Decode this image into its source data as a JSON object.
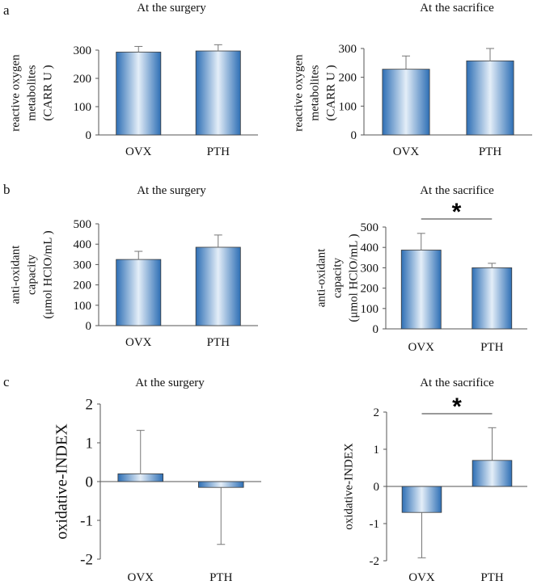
{
  "panels": [
    {
      "letter": "a"
    },
    {
      "letter": "b"
    },
    {
      "letter": "c"
    }
  ],
  "chart_data": [
    {
      "type": "bar",
      "title": "At the surgery",
      "categories": [
        "OVX",
        "PTH"
      ],
      "values": [
        293,
        297
      ],
      "errors": [
        20,
        22
      ],
      "ylabel": [
        "reactive oxygen",
        "metabolites",
        "(CARR U )"
      ],
      "ylim": [
        0,
        300
      ],
      "yticks": [
        "0",
        "100",
        "200",
        "300"
      ],
      "significance": ""
    },
    {
      "type": "bar",
      "title": "At the sacrifice",
      "categories": [
        "OVX",
        "PTH"
      ],
      "values": [
        228,
        257
      ],
      "errors": [
        46,
        43
      ],
      "ylabel": [
        "reactive oxygen",
        "metabolites",
        "(CARR U )"
      ],
      "ylim": [
        0,
        300
      ],
      "yticks": [
        "0",
        "100",
        "200",
        "300"
      ],
      "significance": ""
    },
    {
      "type": "bar",
      "title": "At the surgery",
      "categories": [
        "OVX",
        "PTH"
      ],
      "values": [
        325,
        385
      ],
      "errors": [
        40,
        60
      ],
      "ylabel": [
        "anti-oxidant",
        "capacity",
        "(μmol HClO/mL )"
      ],
      "ylim": [
        0,
        500
      ],
      "yticks": [
        "0",
        "100",
        "200",
        "300",
        "400",
        "500"
      ],
      "significance": ""
    },
    {
      "type": "bar",
      "title": "At the sacrifice",
      "categories": [
        "OVX",
        "PTH"
      ],
      "values": [
        387,
        300
      ],
      "errors": [
        82,
        22
      ],
      "ylabel": [
        "anti-oxidant",
        "capacity",
        "(μmol HClO/mL )"
      ],
      "ylim": [
        0,
        500
      ],
      "yticks": [
        "0",
        "100",
        "200",
        "300",
        "400",
        "500"
      ],
      "significance": "*"
    },
    {
      "type": "bar",
      "title": "At the surgery",
      "categories": [
        "OVX",
        "PTH"
      ],
      "values": [
        0.2,
        -0.15
      ],
      "errors": [
        1.12,
        1.47
      ],
      "ylabel": [
        "oxidative-INDEX"
      ],
      "ylim": [
        -2,
        2
      ],
      "yticks": [
        "-2",
        "-1",
        "0",
        "1",
        "2"
      ],
      "significance": ""
    },
    {
      "type": "bar",
      "title": "At the sacrifice",
      "categories": [
        "OVX",
        "PTH"
      ],
      "values": [
        -0.7,
        0.7
      ],
      "errors": [
        1.22,
        0.88
      ],
      "ylabel": [
        "oxidative-INDEX"
      ],
      "ylim": [
        -2,
        2
      ],
      "yticks": [
        "-2",
        "-1",
        "0",
        "1",
        "2"
      ],
      "significance": "*"
    }
  ]
}
